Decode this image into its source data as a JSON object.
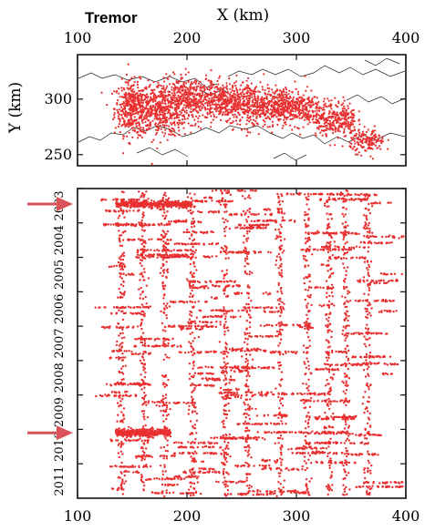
{
  "figure_label": "Tremor",
  "colors": {
    "tremor": "#e83030",
    "arrow": "#d9535a",
    "frame": "#111111",
    "coast": "#222222"
  },
  "chart_data": [
    {
      "type": "scatter",
      "panel": "map",
      "xlabel": "X (km)",
      "ylabel": "Y (km)",
      "xlim": [
        100,
        400
      ],
      "ylim": [
        240,
        340
      ],
      "xticks": [
        100,
        200,
        300,
        400
      ],
      "yticks": [
        250,
        300
      ],
      "grid": false,
      "clusters": [
        {
          "x": 150,
          "y": 292,
          "sx": 8,
          "sy": 12,
          "n": 400
        },
        {
          "x": 175,
          "y": 290,
          "sx": 12,
          "sy": 12,
          "n": 450
        },
        {
          "x": 205,
          "y": 300,
          "sx": 15,
          "sy": 10,
          "n": 420
        },
        {
          "x": 235,
          "y": 298,
          "sx": 12,
          "sy": 8,
          "n": 320
        },
        {
          "x": 262,
          "y": 294,
          "sx": 12,
          "sy": 10,
          "n": 320
        },
        {
          "x": 286,
          "y": 294,
          "sx": 8,
          "sy": 8,
          "n": 260
        },
        {
          "x": 305,
          "y": 292,
          "sx": 8,
          "sy": 8,
          "n": 180
        },
        {
          "x": 330,
          "y": 283,
          "sx": 8,
          "sy": 8,
          "n": 200
        },
        {
          "x": 345,
          "y": 282,
          "sx": 5,
          "sy": 8,
          "n": 120
        },
        {
          "x": 365,
          "y": 262,
          "sx": 8,
          "sy": 5,
          "n": 160
        }
      ]
    },
    {
      "type": "scatter",
      "panel": "time-space",
      "xlabel": "",
      "ylabel": "",
      "xlim": [
        100,
        400
      ],
      "ylim": [
        2003.0,
        2012.0
      ],
      "xticks": [
        100,
        200,
        300,
        400
      ],
      "year_labels": [
        "2003",
        "2004",
        "2005",
        "2006",
        "2007",
        "2008",
        "2009",
        "2010",
        "2011"
      ],
      "grid": false,
      "x_range": [
        135,
        390
      ],
      "event_count": 160,
      "column_x": [
        140,
        160,
        180,
        205,
        235,
        255,
        285,
        310,
        330,
        345,
        365
      ],
      "bursts": [
        {
          "t": 2003.45,
          "x0": 135,
          "x1": 205
        },
        {
          "t": 2010.1,
          "x0": 135,
          "x1": 185
        }
      ],
      "annotations": [
        {
          "type": "arrow",
          "year": 2003.45
        },
        {
          "type": "arrow",
          "year": 2010.1
        }
      ]
    }
  ]
}
